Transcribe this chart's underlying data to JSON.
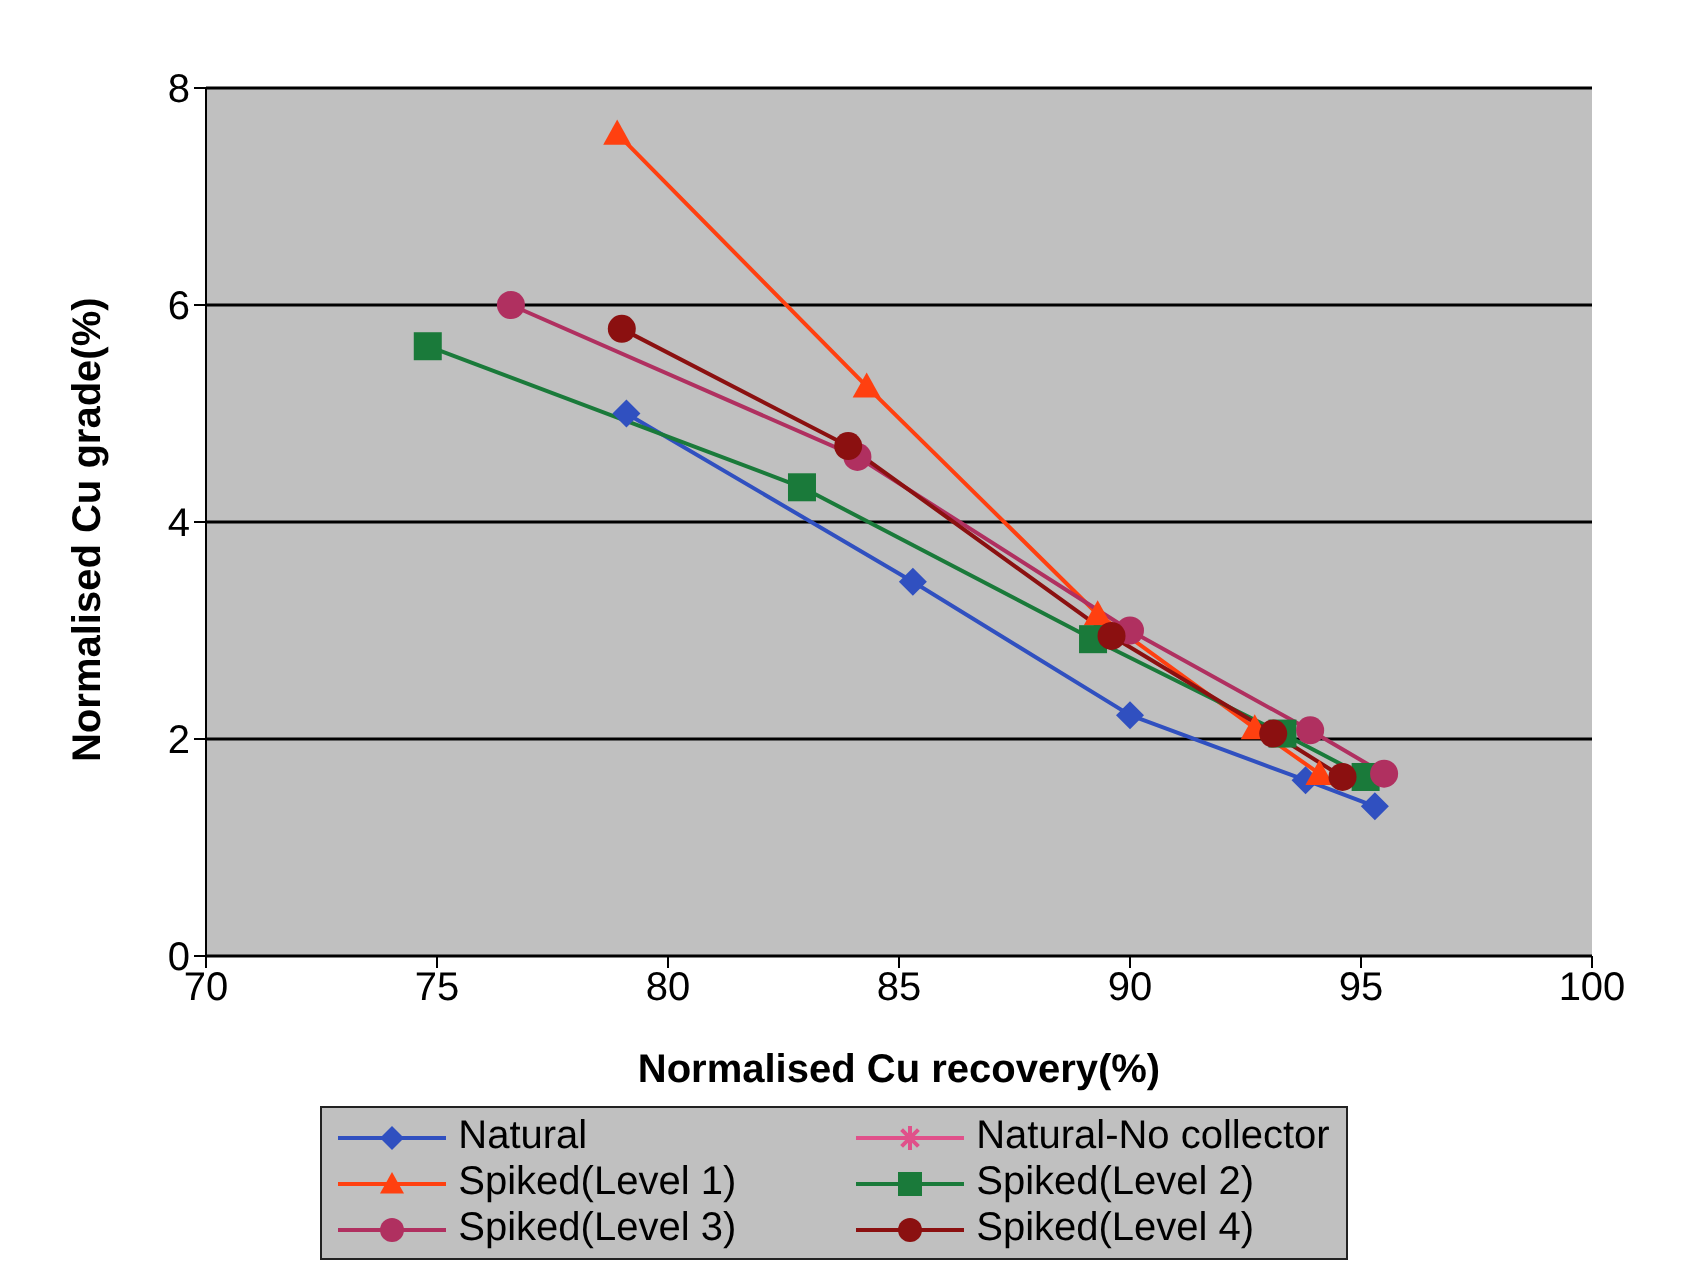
{
  "chart_data": {
    "type": "line",
    "xlabel": "Normalised Cu recovery(%)",
    "ylabel": "Normalised Cu grade(%)",
    "xlim": [
      70,
      100
    ],
    "xticks": [
      70,
      75,
      80,
      85,
      90,
      95,
      100
    ],
    "ylim": [
      0,
      8
    ],
    "yticks": [
      0,
      2,
      4,
      6,
      8
    ],
    "grid": "y",
    "legend": "bottom",
    "series": [
      {
        "name": "Natural",
        "color": "#3050c0",
        "marker": "diamond",
        "x": [
          79.1,
          85.3,
          90.0,
          93.8,
          95.3
        ],
        "values": [
          5.0,
          3.45,
          2.22,
          1.62,
          1.38
        ]
      },
      {
        "name": "Natural-No collector",
        "color": "#e0508a",
        "marker": "star"
      },
      {
        "name": "Spiked(Level 1)",
        "color": "#ff4010",
        "marker": "triangle",
        "x": [
          78.9,
          84.3,
          89.3,
          92.7,
          94.1
        ],
        "values": [
          7.58,
          5.25,
          3.15,
          2.1,
          1.68
        ]
      },
      {
        "name": "Spiked(Level 2)",
        "color": "#1a7a3a",
        "marker": "square",
        "x": [
          74.8,
          82.9,
          89.2,
          93.3,
          95.1
        ],
        "values": [
          5.62,
          4.32,
          2.92,
          2.05,
          1.65
        ]
      },
      {
        "name": "Spiked(Level 3)",
        "color": "#b03060",
        "marker": "circle",
        "x": [
          76.6,
          84.1,
          90.0,
          93.9,
          95.5
        ],
        "values": [
          6.0,
          4.6,
          3.0,
          2.08,
          1.68
        ]
      },
      {
        "name": "Spiked(Level 4)",
        "color": "#8b1010",
        "marker": "circle",
        "x": [
          79.0,
          83.9,
          89.6,
          93.1,
          94.6
        ],
        "values": [
          5.78,
          4.7,
          2.95,
          2.05,
          1.65
        ]
      }
    ]
  }
}
